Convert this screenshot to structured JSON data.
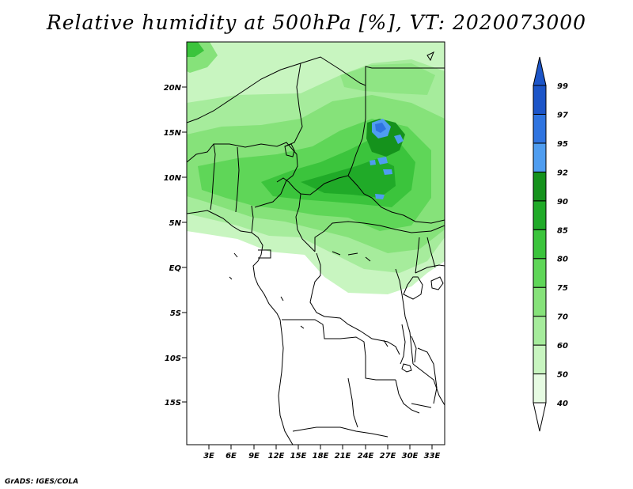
{
  "title": "Relative humidity at 500hPa [%], VT: 2020073000",
  "footer": "GrADS: IGES/COLA",
  "map": {
    "lat_labels": [
      "20N",
      "15N",
      "10N",
      "5N",
      "EQ",
      "5S",
      "10S",
      "15S"
    ],
    "lon_labels": [
      "3E",
      "6E",
      "9E",
      "12E",
      "15E",
      "18E",
      "21E",
      "24E",
      "27E",
      "30E",
      "33E"
    ]
  },
  "colorbar": {
    "levels": [
      "40",
      "50",
      "60",
      "70",
      "75",
      "80",
      "85",
      "90",
      "92",
      "95",
      "97",
      "99"
    ],
    "colors": [
      "#ffffff",
      "#e6fbe2",
      "#c8f5c0",
      "#a6ec9c",
      "#86e27a",
      "#5fd658",
      "#3bc43c",
      "#20aa28",
      "#15921c",
      "#4f9df0",
      "#2f74e0",
      "#1c55c8"
    ]
  }
}
